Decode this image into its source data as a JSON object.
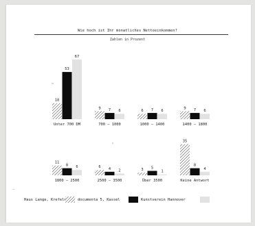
{
  "chart_data": {
    "type": "bar",
    "title": "Wie hoch ist Ihr monatliches Nettoeinkommen?",
    "subtitle": "Zahlen in Prozent",
    "series": [
      {
        "name": "Haus Lange, Krefeld",
        "pattern": "hatched"
      },
      {
        "name": "documenta 5, Kassel",
        "pattern": "black"
      },
      {
        "name": "Kunstverein Hannover",
        "pattern": "lightgray"
      }
    ],
    "categories": [
      "Unter 700 DM",
      "700 – 1000",
      "1000 – 1400",
      "1400 – 1800",
      "1800 – 2500",
      "2500 – 3500",
      "Über 3500",
      "Keine Antwort"
    ],
    "panels": [
      {
        "category": "Unter 700 DM",
        "values": [
          18,
          53,
          67
        ]
      },
      {
        "category": "700 – 1000",
        "values": [
          9,
          7,
          6
        ]
      },
      {
        "category": "1000 – 1400",
        "values": [
          6,
          7,
          6
        ]
      },
      {
        "category": "1400 – 1800",
        "values": [
          9,
          7,
          6
        ]
      },
      {
        "category": "1800 – 2500",
        "values": [
          11,
          8,
          6
        ]
      },
      {
        "category": "2500 – 3500",
        "values": [
          6,
          4,
          2
        ]
      },
      {
        "category": "Über 3500",
        "values": [
          3,
          5,
          1
        ]
      },
      {
        "category": "Keine Antwort",
        "values": [
          35,
          8,
          4
        ]
      }
    ],
    "legend_position": "bottom"
  },
  "colors": {
    "black": "#0d0d0d",
    "lightgray": "#e2e2e2",
    "hatch": "#2a2a2a"
  }
}
